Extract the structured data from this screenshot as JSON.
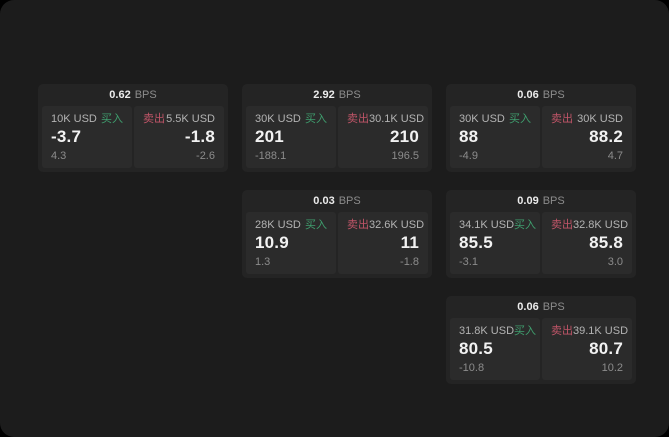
{
  "labels": {
    "bps": "BPS",
    "buy": "买入",
    "sell": "卖出"
  },
  "colors": {
    "page_bg": "#000000",
    "surface_bg": "#1c1c1c",
    "card_bg": "#242424",
    "panel_bg": "#2b2b2b",
    "buy_green": "#3f9e6e",
    "sell_red": "#c05568",
    "value_white": "#f2f2f2",
    "muted_gray": "#8c8c8c",
    "label_gray": "#b3b3b3"
  },
  "cards": [
    {
      "bps": "0.62",
      "row": 1,
      "col": 1,
      "buy": {
        "amount": "10K USD",
        "value": "-3.7",
        "sub": "4.3"
      },
      "sell": {
        "amount": "5.5K USD",
        "value": "-1.8",
        "sub": "-2.6"
      }
    },
    {
      "bps": "2.92",
      "row": 1,
      "col": 2,
      "buy": {
        "amount": "30K USD",
        "value": "201",
        "sub": "-188.1"
      },
      "sell": {
        "amount": "30.1K USD",
        "value": "210",
        "sub": "196.5"
      }
    },
    {
      "bps": "0.06",
      "row": 1,
      "col": 3,
      "buy": {
        "amount": "30K USD",
        "value": "88",
        "sub": "-4.9"
      },
      "sell": {
        "amount": "30K USD",
        "value": "88.2",
        "sub": "4.7"
      }
    },
    {
      "bps": "0.03",
      "row": 2,
      "col": 2,
      "buy": {
        "amount": "28K USD",
        "value": "10.9",
        "sub": "1.3"
      },
      "sell": {
        "amount": "32.6K USD",
        "value": "11",
        "sub": "-1.8"
      }
    },
    {
      "bps": "0.09",
      "row": 2,
      "col": 3,
      "buy": {
        "amount": "34.1K USD",
        "value": "85.5",
        "sub": "-3.1"
      },
      "sell": {
        "amount": "32.8K USD",
        "value": "85.8",
        "sub": "3.0"
      }
    },
    {
      "bps": "0.06",
      "row": 3,
      "col": 3,
      "buy": {
        "amount": "31.8K USD",
        "value": "80.5",
        "sub": "-10.8"
      },
      "sell": {
        "amount": "39.1K USD",
        "value": "80.7",
        "sub": "10.2"
      }
    }
  ]
}
